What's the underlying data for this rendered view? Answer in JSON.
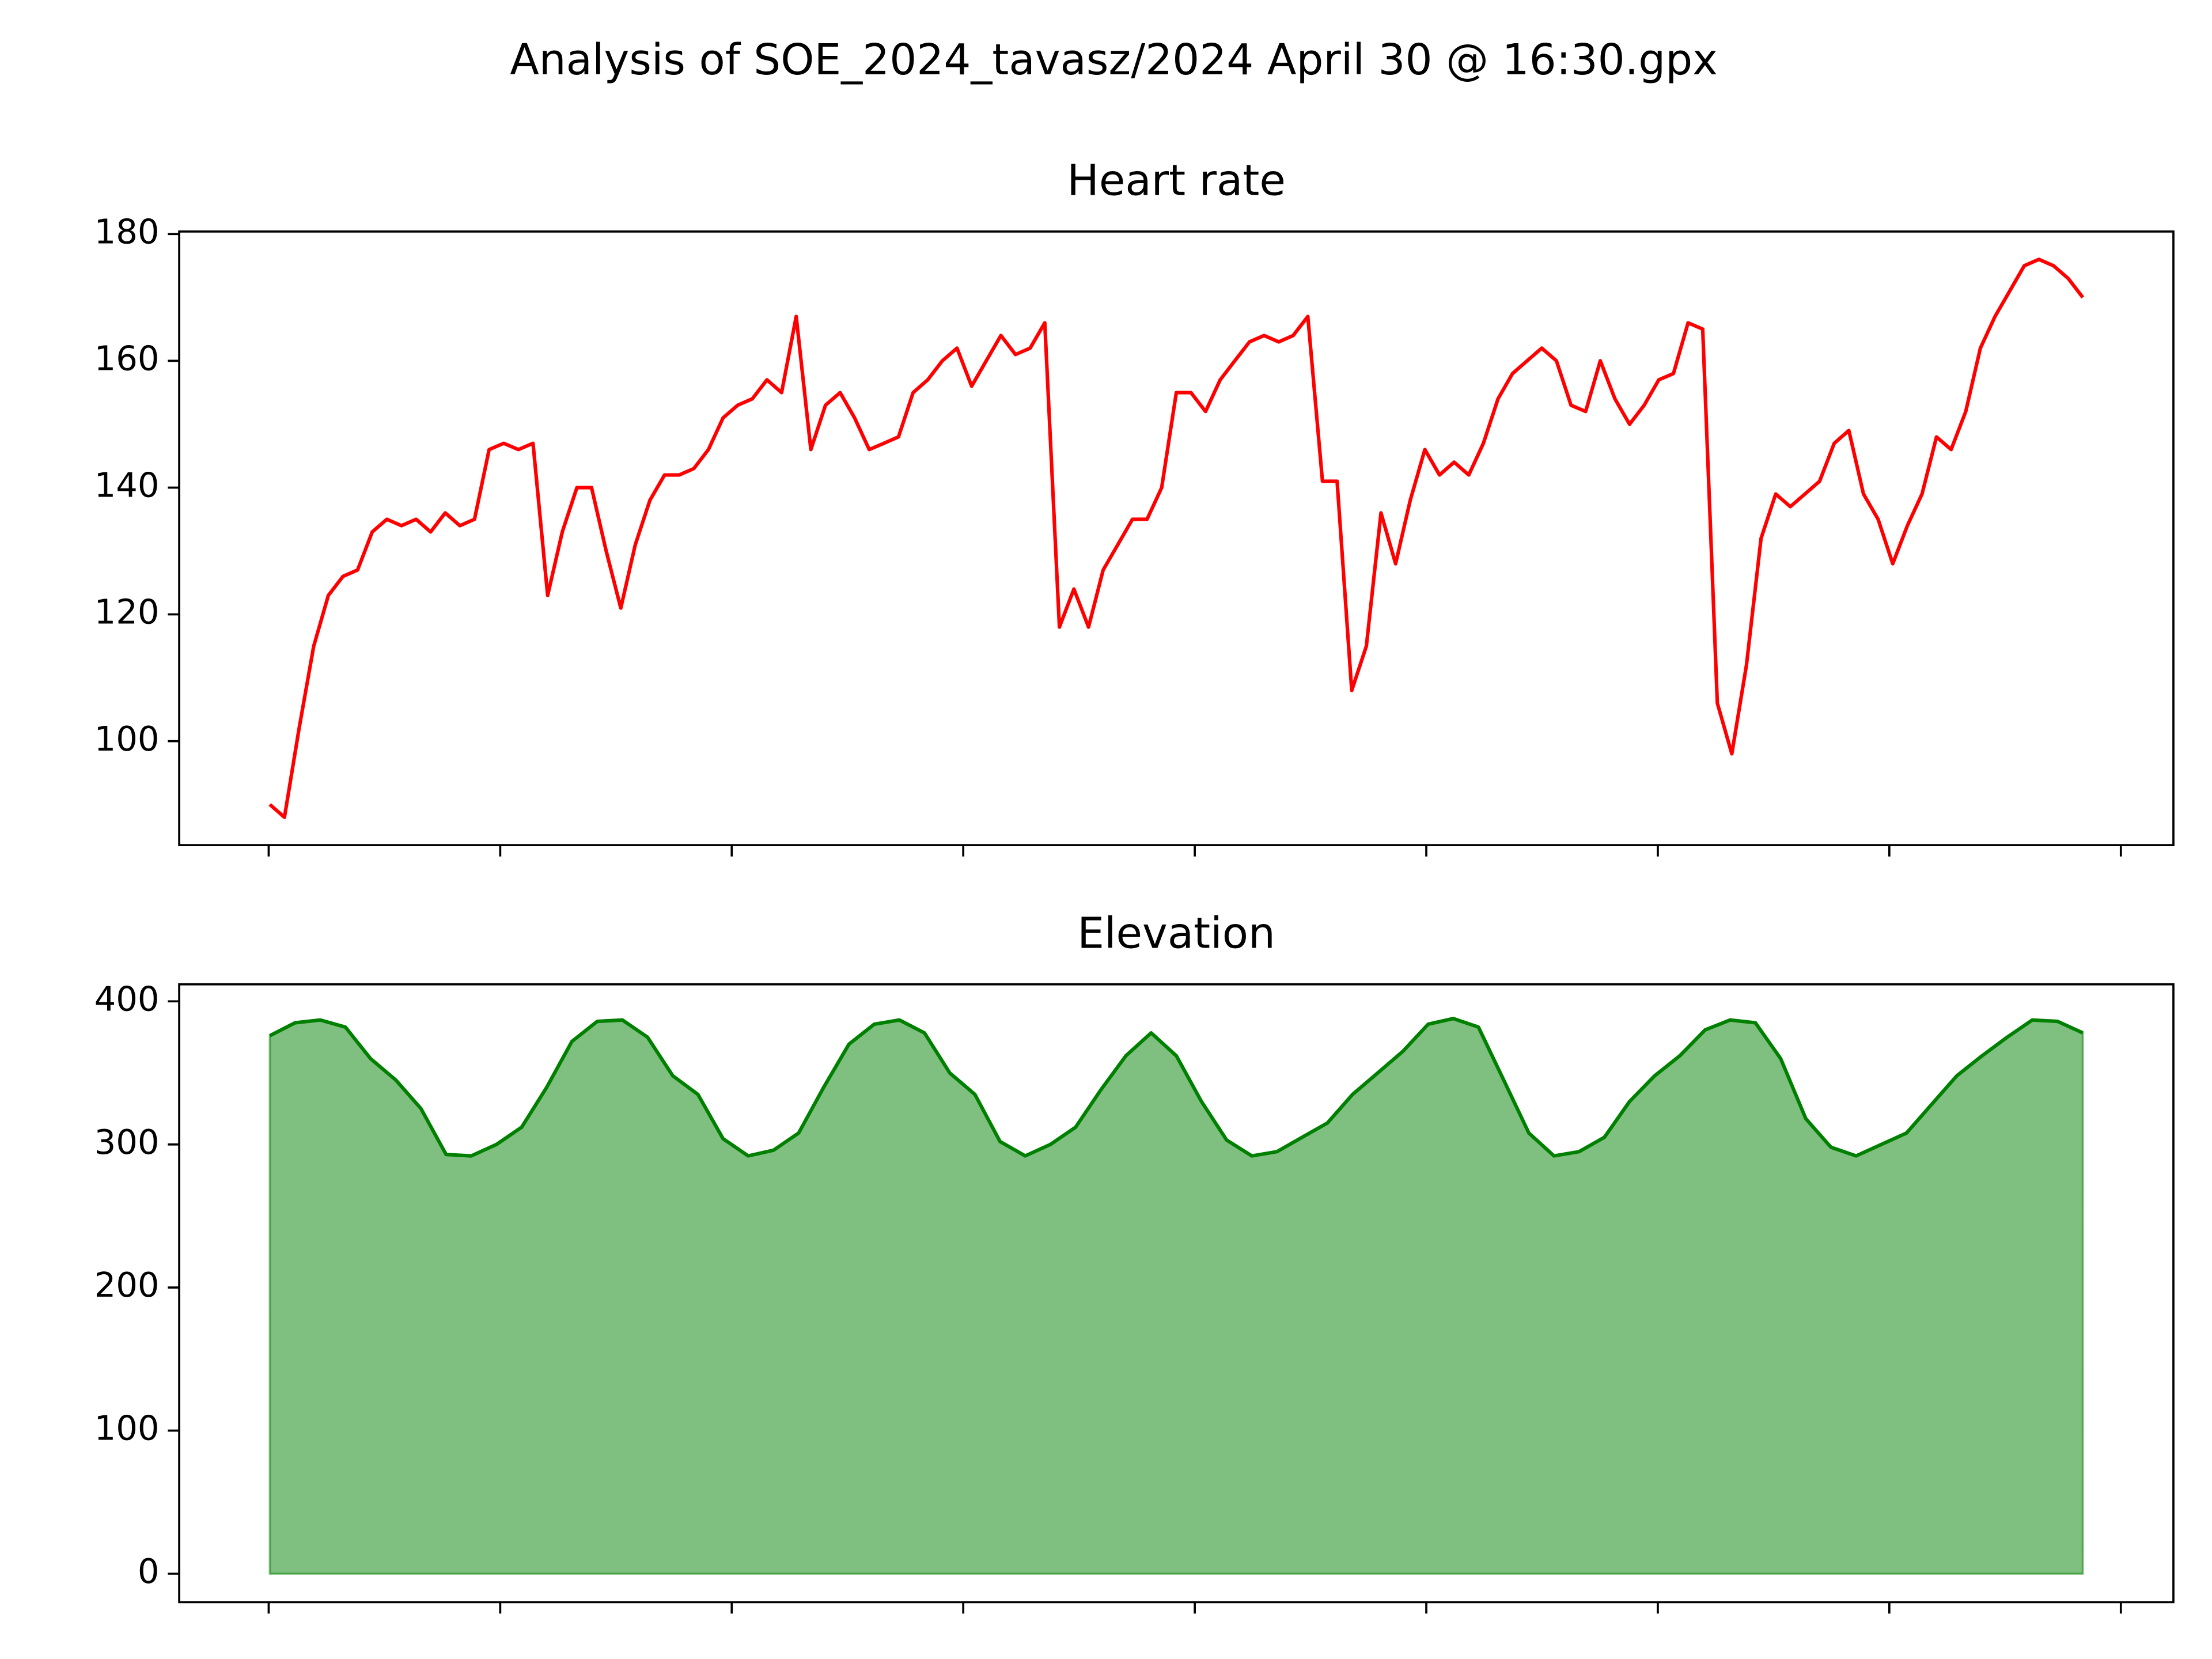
{
  "title": "Analysis of SOE_2024_tavasz/2024 April 30 @ 16:30.gpx",
  "chart_data": [
    {
      "type": "line",
      "title": "Heart rate",
      "color": "#ff0000",
      "ylim": [
        83.6,
        180.4
      ],
      "yticks": [
        100,
        120,
        140,
        160,
        180
      ],
      "values": [
        90,
        88,
        102,
        115,
        123,
        126,
        127,
        133,
        135,
        134,
        135,
        133,
        136,
        134,
        135,
        146,
        147,
        146,
        147,
        123,
        133,
        140,
        140,
        130,
        121,
        131,
        138,
        142,
        142,
        143,
        146,
        151,
        153,
        154,
        157,
        155,
        167,
        146,
        153,
        155,
        151,
        146,
        147,
        148,
        155,
        157,
        160,
        162,
        156,
        160,
        164,
        161,
        162,
        166,
        118,
        124,
        118,
        127,
        131,
        135,
        135,
        140,
        155,
        155,
        152,
        157,
        160,
        163,
        164,
        163,
        164,
        167,
        141,
        141,
        108,
        115,
        136,
        128,
        138,
        146,
        142,
        144,
        142,
        147,
        154,
        158,
        160,
        162,
        160,
        153,
        152,
        160,
        154,
        150,
        153,
        157,
        158,
        166,
        165,
        106,
        98,
        112,
        132,
        139,
        137,
        139,
        141,
        147,
        149,
        139,
        135,
        128,
        134,
        139,
        148,
        146,
        152,
        162,
        167,
        171,
        175,
        176,
        175,
        173,
        170
      ]
    },
    {
      "type": "area",
      "title": "Elevation",
      "color": "#008000",
      "ylim": [
        -19.9,
        411.9
      ],
      "yticks": [
        0,
        100,
        200,
        300,
        400
      ],
      "values": [
        376,
        385,
        387,
        382,
        360,
        345,
        325,
        293,
        292,
        300,
        312,
        340,
        372,
        386,
        387,
        375,
        348,
        335,
        304,
        292,
        296,
        308,
        340,
        370,
        384,
        387,
        378,
        350,
        335,
        302,
        292,
        300,
        312,
        338,
        362,
        378,
        362,
        330,
        303,
        292,
        295,
        305,
        315,
        335,
        350,
        365,
        384,
        388,
        382,
        345,
        308,
        292,
        295,
        305,
        330,
        348,
        362,
        380,
        387,
        385,
        360,
        318,
        298,
        292,
        300,
        308,
        328,
        348,
        362,
        375,
        387,
        386,
        378
      ]
    }
  ]
}
